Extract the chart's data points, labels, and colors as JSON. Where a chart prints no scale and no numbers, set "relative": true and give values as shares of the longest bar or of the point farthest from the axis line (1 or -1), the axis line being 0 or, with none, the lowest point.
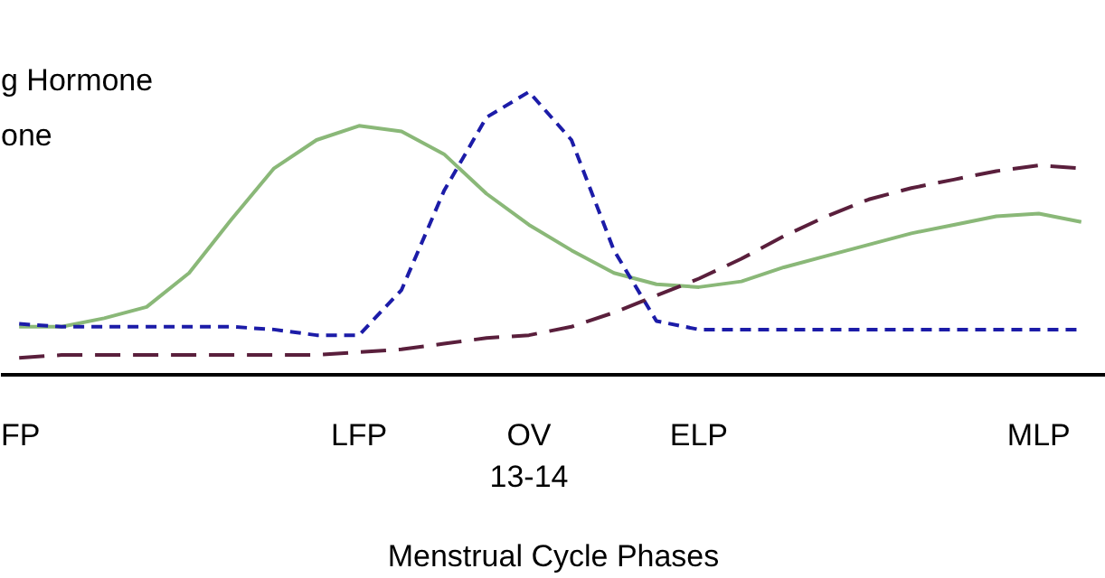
{
  "chart_data": {
    "type": "line",
    "relative": true,
    "xlabel": "Menstrual Cycle Phases",
    "categories": [
      "FP",
      null,
      null,
      null,
      null,
      null,
      null,
      null,
      "LFP",
      null,
      null,
      null,
      "OV\n13-14",
      null,
      null,
      null,
      "ELP",
      null,
      null,
      null,
      null,
      null,
      null,
      null,
      "MLP",
      null
    ],
    "annotations": [
      "g Hormone",
      "one"
    ],
    "series": [
      {
        "color": "#8ab878",
        "line_style": "solid",
        "values": [
          0.17,
          0.17,
          0.2,
          0.24,
          0.36,
          0.55,
          0.73,
          0.83,
          0.88,
          0.86,
          0.78,
          0.64,
          0.53,
          0.44,
          0.36,
          0.32,
          0.31,
          0.33,
          0.38,
          0.42,
          0.46,
          0.5,
          0.53,
          0.56,
          0.57,
          0.54
        ]
      },
      {
        "color": "#1c1ca8",
        "line_style": "dashed",
        "values": [
          0.18,
          0.17,
          0.17,
          0.17,
          0.17,
          0.17,
          0.16,
          0.14,
          0.14,
          0.3,
          0.65,
          0.91,
          1.0,
          0.83,
          0.44,
          0.19,
          0.16,
          0.16,
          0.16,
          0.16,
          0.16,
          0.16,
          0.16,
          0.16,
          0.16,
          0.16
        ]
      },
      {
        "color": "#5a1f3c",
        "line_style": "longdash",
        "values": [
          0.06,
          0.07,
          0.07,
          0.07,
          0.07,
          0.07,
          0.07,
          0.07,
          0.08,
          0.09,
          0.11,
          0.13,
          0.14,
          0.17,
          0.22,
          0.28,
          0.34,
          0.41,
          0.49,
          0.56,
          0.62,
          0.66,
          0.69,
          0.72,
          0.74,
          0.73
        ]
      }
    ]
  }
}
